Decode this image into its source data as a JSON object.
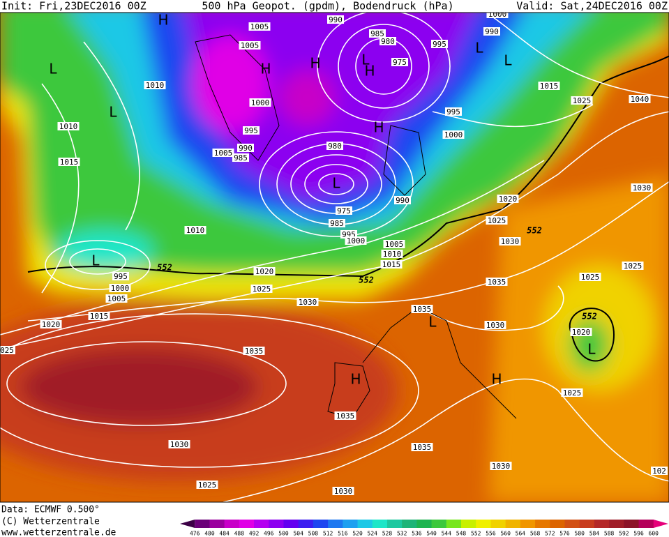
{
  "header": {
    "init": "Init: Fri,23DEC2016 00Z",
    "title": "500 hPa Geopot. (gpdm), Bodendruck (hPa)",
    "valid": "Valid: Sat,24DEC2016 00Z"
  },
  "footer": [
    "Data: ECMWF  0.500°",
    "(C) Wetterzentrale",
    "www.wetterzentrale.de"
  ],
  "colorbar": {
    "levels": [
      476,
      480,
      484,
      488,
      492,
      496,
      500,
      504,
      508,
      512,
      516,
      520,
      524,
      528,
      532,
      536,
      540,
      544,
      548,
      552,
      556,
      560,
      564,
      568,
      572,
      576,
      580,
      584,
      588,
      592,
      596,
      600
    ],
    "colors": [
      "#3c0046",
      "#6a0078",
      "#9a009e",
      "#c800c8",
      "#e000e6",
      "#b400f0",
      "#8c00f0",
      "#6400f0",
      "#3c1ef0",
      "#1e46f0",
      "#1e78f0",
      "#1ea0f0",
      "#1ec8e6",
      "#1ee6c8",
      "#1ec8a0",
      "#1eb478",
      "#1eb450",
      "#3cc83c",
      "#78e61e",
      "#c8f000",
      "#f0f000",
      "#f0d200",
      "#f0b400",
      "#f09600",
      "#e67800",
      "#dc6400",
      "#d25014",
      "#c83c1e",
      "#b42828",
      "#a01e28",
      "#8c1428",
      "#b4005a",
      "#e6007a"
    ]
  },
  "isobar_labels": [
    "1005",
    "1005",
    "1010",
    "1000",
    "995",
    "990",
    "1005",
    "985",
    "980",
    "990",
    "975",
    "985",
    "995",
    "1000",
    "1005",
    "1010",
    "1015",
    "1010",
    "995",
    "1000",
    "1005",
    "1015",
    "1020",
    "1020",
    "1025",
    "1030",
    "1035",
    "1035",
    "1030",
    "1025",
    "1030",
    "1035",
    "1030",
    "1035",
    "1035",
    "1030",
    "1030",
    "1025",
    "1020",
    "1030",
    "1025",
    "1025",
    "1020",
    "1025",
    "1015",
    "1025",
    "1040",
    "1000",
    "995",
    "995",
    "990",
    "1000",
    "985",
    "980",
    "975",
    "990",
    "1010",
    "1015",
    "025",
    "102"
  ],
  "contour_552_labels": [
    "552",
    "552",
    "552",
    "552"
  ],
  "pressure_centers": [
    "H",
    "L",
    "H",
    "H",
    "L",
    "H",
    "L",
    "L",
    "L",
    "H",
    "L",
    "L",
    "L",
    "H",
    "H",
    "L"
  ]
}
